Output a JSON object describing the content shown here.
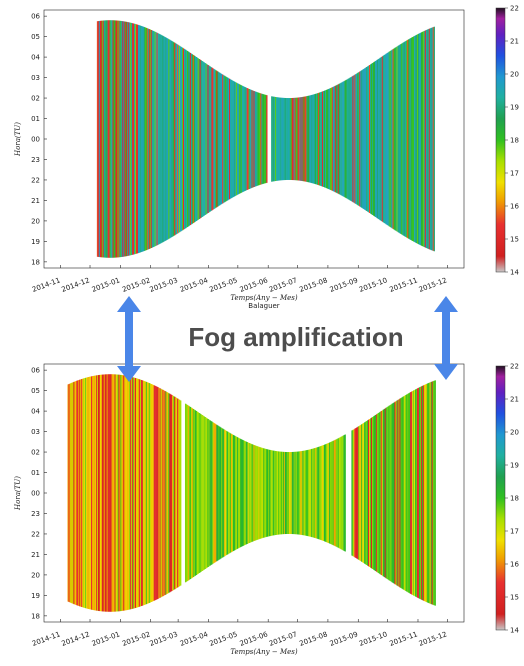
{
  "annotation": {
    "text": "Fog amplification",
    "arrow_color": "#4a86e8"
  },
  "chart_data": [
    {
      "type": "heatmap",
      "title": "",
      "xlabel": "Temps(Any − Mes)",
      "ylabel": "Hora(TU)",
      "subtitle": "Balaguer",
      "x_ticks": [
        "2014-11",
        "2014-12",
        "2015-01",
        "2015-02",
        "2015-03",
        "2015-04",
        "2015-05",
        "2015-06",
        "2015-07",
        "2015-08",
        "2015-09",
        "2015-10",
        "2015-11",
        "2015-12"
      ],
      "y_ticks": [
        "06",
        "05",
        "04",
        "03",
        "02",
        "01",
        "00",
        "23",
        "22",
        "21",
        "20",
        "19",
        "18"
      ],
      "colorbar": {
        "ticks": [
          "22",
          "21",
          "20",
          "19",
          "18",
          "17",
          "16",
          "15",
          "14"
        ],
        "min": 14,
        "max": 22
      },
      "segments": [
        {
          "start": "2014-12-08",
          "end": "2015-05-30",
          "dominant": "17.5–19 (cyan/green)"
        },
        {
          "start": "2015-06-04",
          "end": "2015-11-17",
          "dominant": "17.5–19 (cyan/green)"
        }
      ]
    },
    {
      "type": "heatmap",
      "title": "",
      "xlabel": "Temps(Any − Mes)",
      "ylabel": "Hora(TU)",
      "subtitle": "",
      "x_ticks": [
        "2014-11",
        "2014-12",
        "2015-01",
        "2015-02",
        "2015-03",
        "2015-04",
        "2015-05",
        "2015-06",
        "2015-07",
        "2015-08",
        "2015-09",
        "2015-10",
        "2015-11",
        "2015-12"
      ],
      "y_ticks": [
        "06",
        "05",
        "04",
        "03",
        "02",
        "01",
        "00",
        "23",
        "22",
        "21",
        "20",
        "19",
        "18"
      ],
      "colorbar": {
        "ticks": [
          "22",
          "21",
          "20",
          "19",
          "18",
          "17",
          "16",
          "15",
          "14"
        ],
        "min": 14,
        "max": 22
      },
      "segments": [
        {
          "start": "2014-11-08",
          "end": "2015-03-03",
          "dominant": "15–16.5 (yellow/red)"
        },
        {
          "start": "2015-03-08",
          "end": "2015-08-18",
          "dominant": "16.5–17.5 (yellow-green)"
        },
        {
          "start": "2015-08-25",
          "end": "2015-11-18",
          "dominant": "15–17 (green/red)"
        }
      ]
    }
  ]
}
